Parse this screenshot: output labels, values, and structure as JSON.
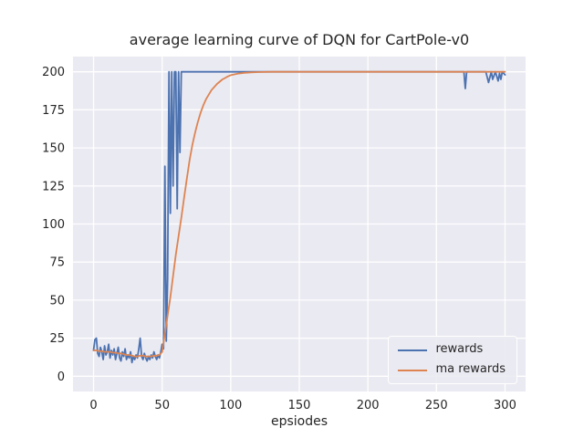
{
  "chart_data": {
    "type": "line",
    "title": "average learning curve of DQN for CartPole-v0",
    "xlabel": "epsiodes",
    "ylabel": "",
    "xlim": [
      -15,
      315
    ],
    "ylim": [
      -10,
      210
    ],
    "x_ticks": [
      0,
      50,
      100,
      150,
      200,
      250,
      300
    ],
    "y_ticks": [
      0,
      25,
      50,
      75,
      100,
      125,
      150,
      175,
      200
    ],
    "grid": true,
    "legend_position": "lower right",
    "plot_bg_color": "#eaeaf2",
    "grid_color": "#ffffff",
    "text_color": "#262626",
    "series": [
      {
        "name": "rewards",
        "color": "#4c72b0",
        "points": [
          [
            0,
            17
          ],
          [
            1,
            24
          ],
          [
            2,
            25
          ],
          [
            3,
            15
          ],
          [
            4,
            13
          ],
          [
            5,
            19
          ],
          [
            6,
            16
          ],
          [
            7,
            11
          ],
          [
            8,
            20
          ],
          [
            9,
            14
          ],
          [
            10,
            16
          ],
          [
            11,
            21
          ],
          [
            12,
            12
          ],
          [
            13,
            17
          ],
          [
            14,
            14
          ],
          [
            15,
            18
          ],
          [
            16,
            11
          ],
          [
            17,
            15
          ],
          [
            18,
            19
          ],
          [
            19,
            12
          ],
          [
            20,
            10
          ],
          [
            21,
            16
          ],
          [
            22,
            13
          ],
          [
            23,
            18
          ],
          [
            24,
            11
          ],
          [
            25,
            14
          ],
          [
            26,
            12
          ],
          [
            27,
            16
          ],
          [
            28,
            9
          ],
          [
            29,
            13
          ],
          [
            30,
            11
          ],
          [
            31,
            14
          ],
          [
            32,
            12
          ],
          [
            33,
            18
          ],
          [
            34,
            25
          ],
          [
            35,
            13
          ],
          [
            36,
            11
          ],
          [
            37,
            15
          ],
          [
            38,
            12
          ],
          [
            39,
            10
          ],
          [
            40,
            13
          ],
          [
            41,
            11
          ],
          [
            42,
            14
          ],
          [
            43,
            12
          ],
          [
            44,
            16
          ],
          [
            45,
            13
          ],
          [
            46,
            11
          ],
          [
            47,
            14
          ],
          [
            48,
            12
          ],
          [
            49,
            16
          ],
          [
            50,
            21
          ],
          [
            51,
            18
          ],
          [
            52,
            138
          ],
          [
            53,
            23
          ],
          [
            54,
            64
          ],
          [
            55,
            200
          ],
          [
            56,
            107
          ],
          [
            57,
            200
          ],
          [
            58,
            125
          ],
          [
            59,
            200
          ],
          [
            60,
            200
          ],
          [
            61,
            110
          ],
          [
            62,
            200
          ],
          [
            63,
            147
          ],
          [
            64,
            200
          ],
          [
            66,
            200
          ],
          [
            70,
            200
          ],
          [
            80,
            200
          ],
          [
            90,
            200
          ],
          [
            100,
            200
          ],
          [
            125,
            200
          ],
          [
            150,
            200
          ],
          [
            175,
            200
          ],
          [
            200,
            200
          ],
          [
            225,
            200
          ],
          [
            250,
            200
          ],
          [
            268,
            200
          ],
          [
            270,
            200
          ],
          [
            271,
            189
          ],
          [
            272,
            200
          ],
          [
            283,
            200
          ],
          [
            286,
            200
          ],
          [
            288,
            193
          ],
          [
            290,
            200
          ],
          [
            291,
            195
          ],
          [
            293,
            200
          ],
          [
            295,
            194
          ],
          [
            296,
            199
          ],
          [
            297,
            195
          ],
          [
            298,
            200
          ],
          [
            300,
            198
          ]
        ]
      },
      {
        "name": "ma rewards",
        "color": "#dd8452",
        "points": [
          [
            0,
            17
          ],
          [
            2,
            17
          ],
          [
            4,
            16.5
          ],
          [
            6,
            16.5
          ],
          [
            8,
            16
          ],
          [
            10,
            16
          ],
          [
            12,
            16
          ],
          [
            14,
            15.5
          ],
          [
            16,
            15.5
          ],
          [
            18,
            15
          ],
          [
            20,
            15
          ],
          [
            22,
            14.5
          ],
          [
            24,
            14
          ],
          [
            26,
            14
          ],
          [
            28,
            13.5
          ],
          [
            30,
            13
          ],
          [
            32,
            13
          ],
          [
            34,
            13.5
          ],
          [
            36,
            13.5
          ],
          [
            38,
            13
          ],
          [
            40,
            13
          ],
          [
            42,
            13
          ],
          [
            44,
            13.5
          ],
          [
            46,
            13.5
          ],
          [
            48,
            14
          ],
          [
            50,
            16
          ],
          [
            52,
            28
          ],
          [
            54,
            40
          ],
          [
            56,
            52
          ],
          [
            58,
            66
          ],
          [
            60,
            80
          ],
          [
            62,
            92
          ],
          [
            64,
            104
          ],
          [
            66,
            117
          ],
          [
            68,
            130
          ],
          [
            70,
            142
          ],
          [
            72,
            152
          ],
          [
            74,
            160
          ],
          [
            76,
            167
          ],
          [
            78,
            173
          ],
          [
            80,
            178
          ],
          [
            82,
            182
          ],
          [
            84,
            185
          ],
          [
            86,
            188
          ],
          [
            88,
            190
          ],
          [
            90,
            192
          ],
          [
            92,
            193.5
          ],
          [
            94,
            195
          ],
          [
            96,
            196
          ],
          [
            98,
            197
          ],
          [
            100,
            197.8
          ],
          [
            105,
            198.8
          ],
          [
            110,
            199.3
          ],
          [
            115,
            199.6
          ],
          [
            120,
            199.8
          ],
          [
            130,
            200
          ],
          [
            150,
            200
          ],
          [
            200,
            200
          ],
          [
            250,
            200
          ],
          [
            300,
            200
          ]
        ]
      }
    ]
  }
}
